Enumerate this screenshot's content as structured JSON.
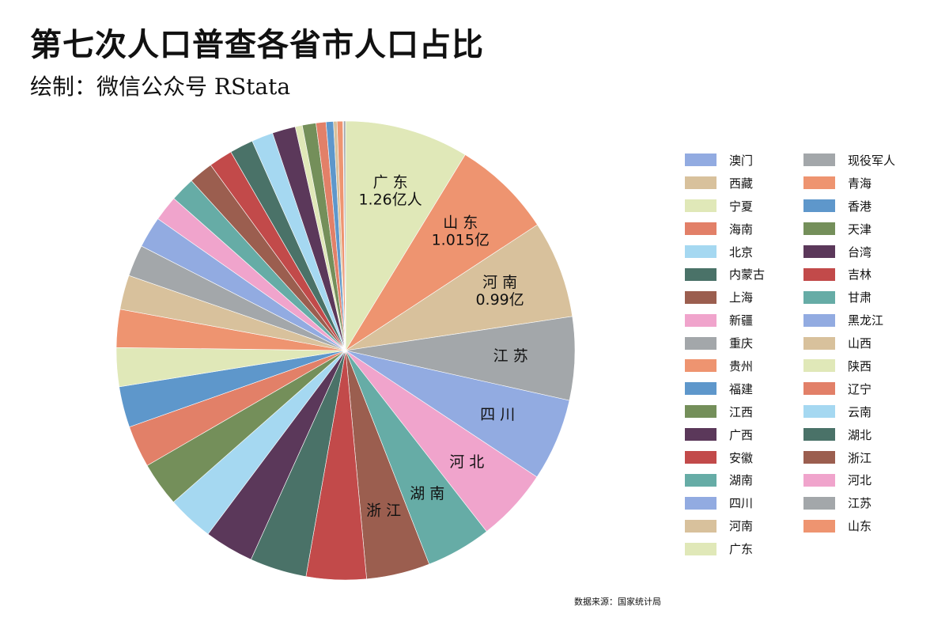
{
  "title": "第七次人口普查各省市人口占比",
  "subtitle": "绘制：微信公众号 RStata",
  "source": "数据来源：国家统计局",
  "chart_data": {
    "type": "pie",
    "title": "第七次人口普查各省市人口占比",
    "subtitle": "绘制：微信公众号 RStata",
    "start": "12 o'clock",
    "direction": "clockwise",
    "legend_position": "right",
    "value_unit": "亿人",
    "categories": [
      "广东",
      "山东",
      "河南",
      "江苏",
      "四川",
      "河北",
      "湖南",
      "浙江",
      "安徽",
      "湖北",
      "广西",
      "云南",
      "江西",
      "辽宁",
      "福建",
      "陕西",
      "贵州",
      "山西",
      "重庆",
      "黑龙江",
      "新疆",
      "甘肃",
      "上海",
      "吉林",
      "内蒙古",
      "北京",
      "台湾",
      "宁夏",
      "天津",
      "海南",
      "香港",
      "西藏",
      "青海",
      "澳门",
      "现役军人"
    ],
    "values": [
      1.26,
      1.015,
      0.99,
      0.847,
      0.837,
      0.746,
      0.664,
      0.646,
      0.61,
      0.578,
      0.501,
      0.472,
      0.452,
      0.426,
      0.415,
      0.395,
      0.386,
      0.349,
      0.321,
      0.319,
      0.259,
      0.25,
      0.249,
      0.241,
      0.24,
      0.219,
      0.236,
      0.072,
      0.139,
      0.101,
      0.075,
      0.036,
      0.059,
      0.007,
      0.02
    ],
    "colors": [
      "#e0e8b8",
      "#ee9470",
      "#d8c19c",
      "#a3a7aa",
      "#92abe1",
      "#f0a4cc",
      "#66aca6",
      "#9b5e4f",
      "#c24a4a",
      "#4a7268",
      "#5b385a",
      "#a5d8f1",
      "#748f5a",
      "#e28068",
      "#5e97cb",
      "#e0e8b8",
      "#ee9470",
      "#d8c19c",
      "#a3a7aa",
      "#92abe1",
      "#f0a4cc",
      "#66aca6",
      "#9b5e4f",
      "#c24a4a",
      "#4a7268",
      "#a5d8f1",
      "#5b385a",
      "#e0e8b8",
      "#748f5a",
      "#e28068",
      "#5e97cb",
      "#d8c19c",
      "#ee9470",
      "#92abe1",
      "#a3a7aa"
    ],
    "slice_labels": [
      {
        "category": "广东",
        "lines": [
          "广 东",
          "1.26亿人"
        ]
      },
      {
        "category": "山东",
        "lines": [
          "山 东",
          "1.015亿"
        ]
      },
      {
        "category": "河南",
        "lines": [
          "河 南",
          "0.99亿"
        ]
      },
      {
        "category": "江苏",
        "lines": [
          "江 苏"
        ]
      },
      {
        "category": "四川",
        "lines": [
          "四 川"
        ]
      },
      {
        "category": "河北",
        "lines": [
          "河 北"
        ]
      },
      {
        "category": "湖南",
        "lines": [
          "湖 南"
        ]
      },
      {
        "category": "浙江",
        "lines": [
          "浙 江"
        ]
      }
    ],
    "legend": [
      {
        "label": "澳门",
        "color": "#92abe1"
      },
      {
        "label": "西藏",
        "color": "#d8c19c"
      },
      {
        "label": "宁夏",
        "color": "#e0e8b8"
      },
      {
        "label": "海南",
        "color": "#e28068"
      },
      {
        "label": "北京",
        "color": "#a5d8f1"
      },
      {
        "label": "内蒙古",
        "color": "#4a7268"
      },
      {
        "label": "上海",
        "color": "#9b5e4f"
      },
      {
        "label": "新疆",
        "color": "#f0a4cc"
      },
      {
        "label": "重庆",
        "color": "#a3a7aa"
      },
      {
        "label": "贵州",
        "color": "#ee9470"
      },
      {
        "label": "福建",
        "color": "#5e97cb"
      },
      {
        "label": "江西",
        "color": "#748f5a"
      },
      {
        "label": "广西",
        "color": "#5b385a"
      },
      {
        "label": "安徽",
        "color": "#c24a4a"
      },
      {
        "label": "湖南",
        "color": "#66aca6"
      },
      {
        "label": "四川",
        "color": "#92abe1"
      },
      {
        "label": "河南",
        "color": "#d8c19c"
      },
      {
        "label": "广东",
        "color": "#e0e8b8"
      },
      {
        "label": "现役军人",
        "color": "#a3a7aa"
      },
      {
        "label": "青海",
        "color": "#ee9470"
      },
      {
        "label": "香港",
        "color": "#5e97cb"
      },
      {
        "label": "天津",
        "color": "#748f5a"
      },
      {
        "label": "台湾",
        "color": "#5b385a"
      },
      {
        "label": "吉林",
        "color": "#c24a4a"
      },
      {
        "label": "甘肃",
        "color": "#66aca6"
      },
      {
        "label": "黑龙江",
        "color": "#92abe1"
      },
      {
        "label": "山西",
        "color": "#d8c19c"
      },
      {
        "label": "陕西",
        "color": "#e0e8b8"
      },
      {
        "label": "辽宁",
        "color": "#e28068"
      },
      {
        "label": "云南",
        "color": "#a5d8f1"
      },
      {
        "label": "湖北",
        "color": "#4a7268"
      },
      {
        "label": "浙江",
        "color": "#9b5e4f"
      },
      {
        "label": "河北",
        "color": "#f0a4cc"
      },
      {
        "label": "江苏",
        "color": "#a3a7aa"
      },
      {
        "label": "山东",
        "color": "#ee9470"
      }
    ]
  }
}
